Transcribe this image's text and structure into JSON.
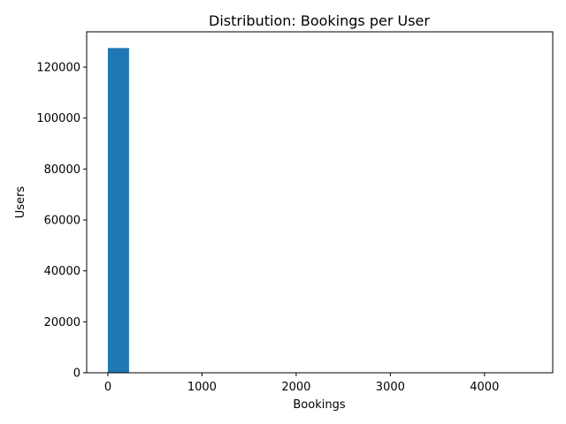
{
  "chart_data": {
    "type": "bar",
    "title": "Distribution: Bookings per User",
    "xlabel": "Bookings",
    "ylabel": "Users",
    "bins": [
      {
        "x0": 0,
        "x1": 225,
        "count": 127500
      },
      {
        "x0": 225,
        "x1": 450,
        "count": 0
      },
      {
        "x0": 450,
        "x1": 675,
        "count": 0
      },
      {
        "x0": 675,
        "x1": 900,
        "count": 0
      },
      {
        "x0": 900,
        "x1": 1125,
        "count": 0
      },
      {
        "x0": 1125,
        "x1": 1350,
        "count": 0
      },
      {
        "x0": 1350,
        "x1": 1575,
        "count": 0
      },
      {
        "x0": 1575,
        "x1": 1800,
        "count": 0
      },
      {
        "x0": 1800,
        "x1": 2025,
        "count": 0
      },
      {
        "x0": 2025,
        "x1": 2250,
        "count": 0
      },
      {
        "x0": 2250,
        "x1": 2475,
        "count": 0
      },
      {
        "x0": 2475,
        "x1": 2700,
        "count": 0
      },
      {
        "x0": 2700,
        "x1": 2925,
        "count": 0
      },
      {
        "x0": 2925,
        "x1": 3150,
        "count": 0
      },
      {
        "x0": 3150,
        "x1": 3375,
        "count": 0
      },
      {
        "x0": 3375,
        "x1": 3600,
        "count": 0
      },
      {
        "x0": 3600,
        "x1": 3825,
        "count": 0
      },
      {
        "x0": 3825,
        "x1": 4050,
        "count": 0
      },
      {
        "x0": 4050,
        "x1": 4275,
        "count": 0
      },
      {
        "x0": 4275,
        "x1": 4500,
        "count": 0
      }
    ],
    "xlim": [
      -225,
      4725
    ],
    "ylim": [
      0,
      133875
    ],
    "x_ticks": [
      0,
      1000,
      2000,
      3000,
      4000
    ],
    "y_ticks": [
      0,
      20000,
      40000,
      60000,
      80000,
      100000,
      120000
    ],
    "grid": false,
    "bar_color": "#1f77b4"
  }
}
